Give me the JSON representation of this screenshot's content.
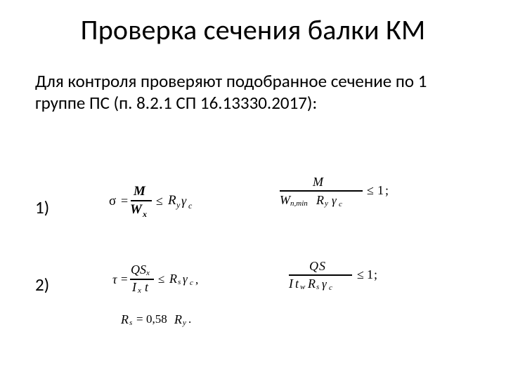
{
  "title": "Проверка сечения балки КМ",
  "body": "Для контроля проверяют подобранное сечение по 1 группе ПС (п. 8.2.1 СП 16.13330.2017):",
  "items": {
    "n1": "1)",
    "n2": "2)"
  },
  "sym": {
    "sigma": "σ",
    "tau": "τ",
    "eq": "=",
    "le": "≤",
    "gamma": "γ",
    "comma": ",",
    "semi": ";",
    "dot": ".",
    "one": "1"
  },
  "f1l": {
    "numM": "M",
    "denW": "W",
    "denWx": "x",
    "Ry": "R",
    "Rys": "y",
    "gcs": "c"
  },
  "f1r": {
    "numM": "M",
    "Wn": "W",
    "Wns": "n,min",
    "Ry": "R",
    "Rys": "y",
    "gcs": "c"
  },
  "f2l": {
    "Q": "Q",
    "S": "S",
    "Sx": "x",
    "I": "I",
    "Ix": "x",
    "t": "t",
    "Rs": "R",
    "Rss": "s",
    "gcs": "c"
  },
  "f2r": {
    "Q": "Q",
    "S": "S",
    "I": "I",
    "t": "t",
    "tw": "w",
    "Rs": "R",
    "Rss": "s",
    "gcs": "c"
  },
  "f3": {
    "Rs": "R",
    "Rss": "s",
    "val": "0,58",
    "Ry": "R",
    "Rys": "y"
  }
}
